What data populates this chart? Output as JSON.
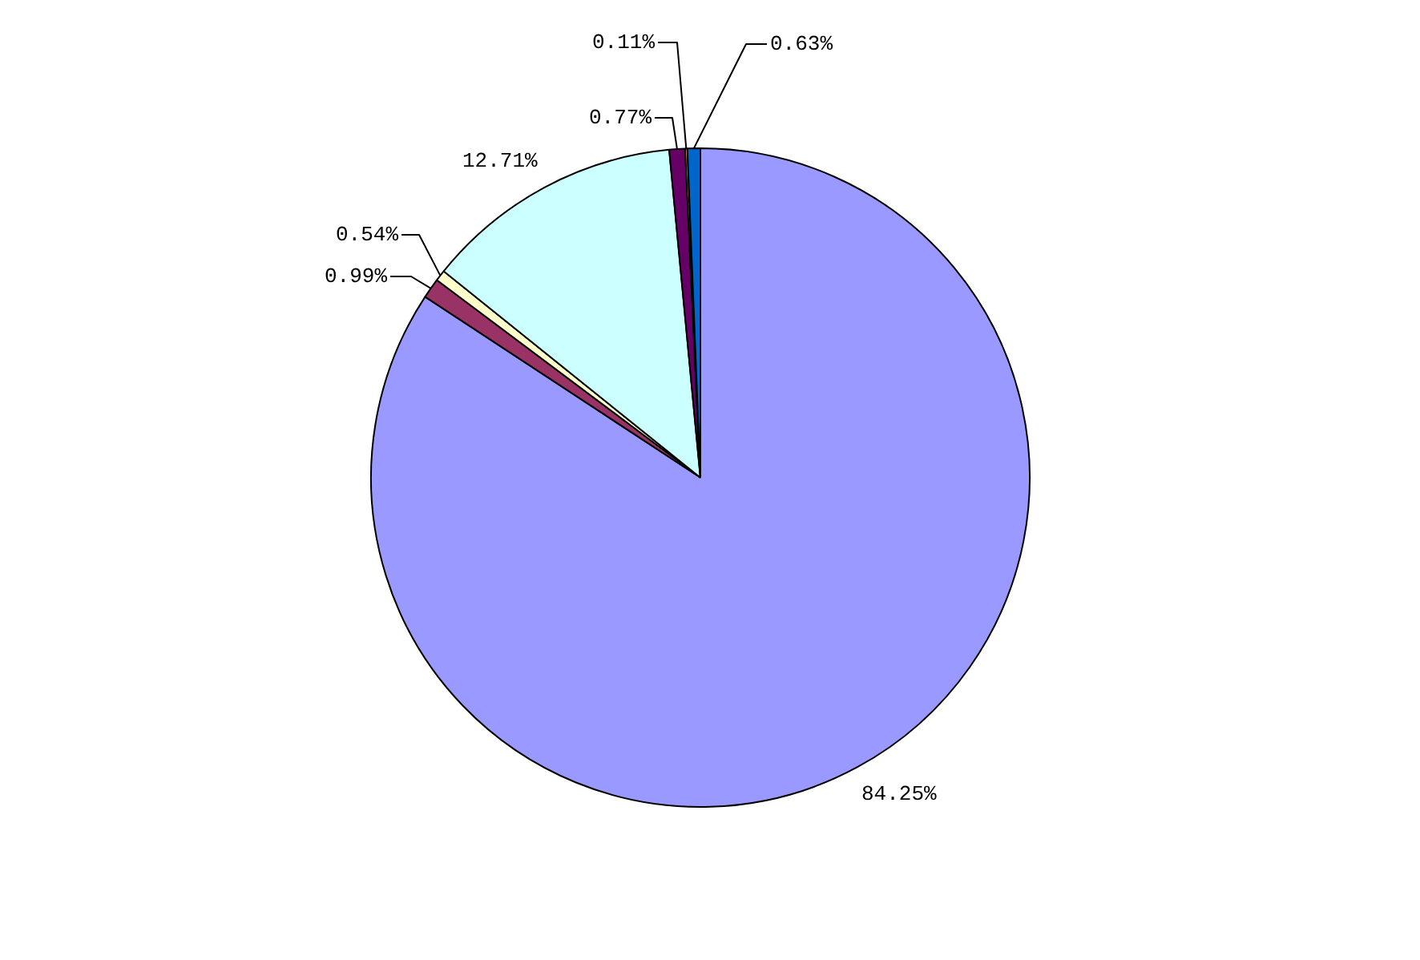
{
  "chart_data": {
    "type": "pie",
    "categories": [
      null,
      null,
      null,
      null,
      null,
      null,
      null
    ],
    "values": [
      84.25,
      0.99,
      0.54,
      12.71,
      0.77,
      0.11,
      0.63
    ],
    "colors": [
      "#9999ff",
      "#993366",
      "#ffffcc",
      "#ccffff",
      "#660066",
      "#ff8080",
      "#0066cc"
    ],
    "value_labels": [
      "84.25%",
      "0.99%",
      "0.54%",
      "12.71%",
      "0.77%",
      "0.11%",
      "0.63%"
    ]
  }
}
